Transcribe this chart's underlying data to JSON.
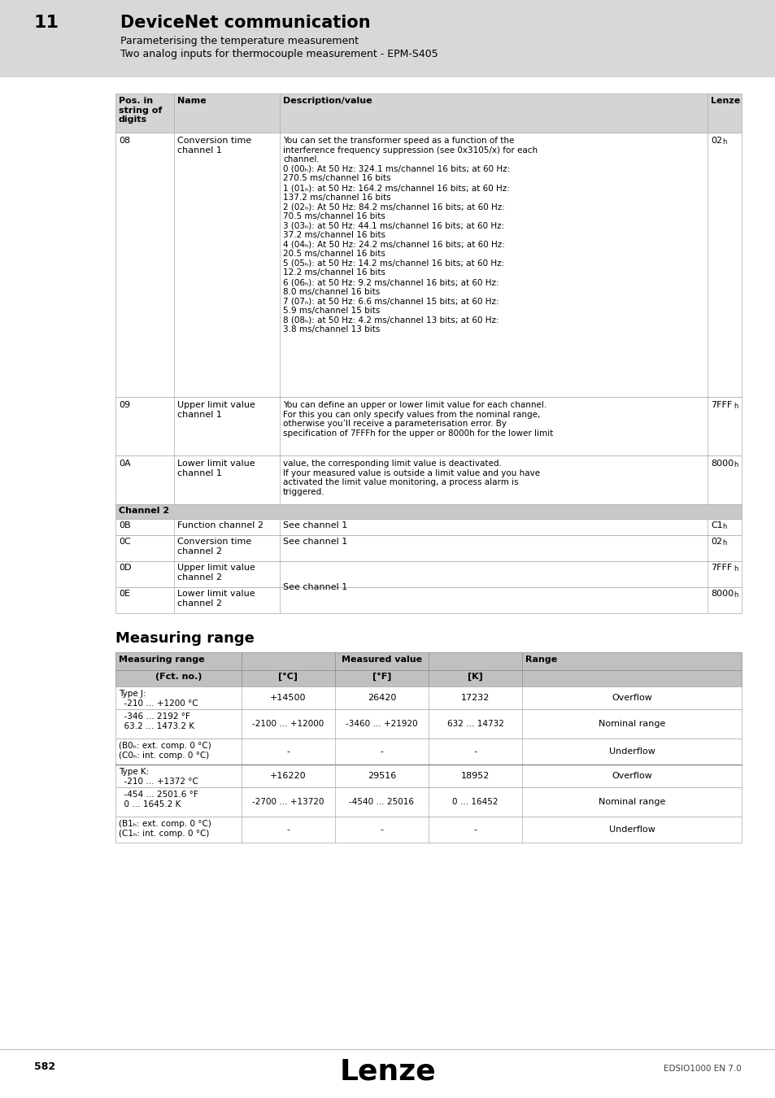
{
  "page_bg": "#e8e8e8",
  "white": "#ffffff",
  "header_gray": "#d8d8d8",
  "table_header_gray": "#d0d0d0",
  "ch2_gray": "#c8c8c8",
  "meas_header_gray": "#c0c0c0",
  "chapter_num": "11",
  "chapter_title": "DeviceNet communication",
  "subtitle1": "Parameterising the temperature measurement",
  "subtitle2": "Two analog inputs for thermocouple measurement - EPM-S405",
  "page_num": "582",
  "footer_brand": "Lenze",
  "footer_right": "EDSIO1000 EN 7.0"
}
